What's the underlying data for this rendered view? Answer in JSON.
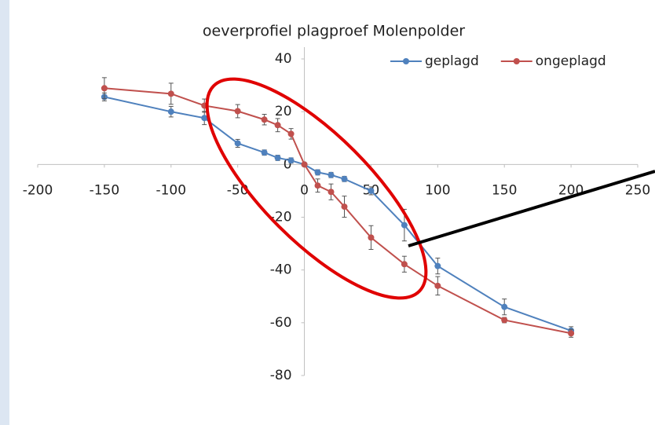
{
  "chart_data": {
    "type": "line",
    "title": "oeverprofiel plagproef Molenpolder",
    "x": [
      -150,
      -100,
      -75,
      -50,
      -30,
      -20,
      -10,
      0,
      10,
      20,
      30,
      50,
      75,
      100,
      150,
      200
    ],
    "series": [
      {
        "name": "geplagd",
        "color": "#4f81bd",
        "values": [
          25.6,
          20,
          17.6,
          8,
          4.5,
          2.5,
          1.5,
          0,
          -3,
          -4,
          -5.5,
          -10,
          -23,
          -38.5,
          -54,
          -63
        ],
        "errors": [
          1.5,
          2,
          2.5,
          1.5,
          1,
          1,
          1,
          0.5,
          1,
          1,
          1,
          1.5,
          6,
          3,
          3,
          1.5
        ]
      },
      {
        "name": "ongeplagd",
        "color": "#c0504d",
        "values": [
          28.9,
          26.8,
          22.3,
          20.2,
          17,
          14.9,
          11.6,
          0,
          -8,
          -10.4,
          -16,
          -27.7,
          -37.8,
          -46,
          -59,
          -64
        ],
        "errors": [
          4,
          4,
          2.5,
          2.5,
          2,
          2.5,
          2,
          0.5,
          2.5,
          3,
          4,
          4.5,
          3,
          3.5,
          1,
          1.5
        ]
      }
    ],
    "xlim": [
      -200,
      250
    ],
    "xticks": [
      -200,
      -150,
      -100,
      -50,
      0,
      50,
      100,
      150,
      200,
      250
    ],
    "ylim": [
      -80,
      40
    ],
    "yticks": [
      -80,
      -60,
      -40,
      -20,
      0,
      20,
      40
    ],
    "grid": false,
    "legend": "top-right"
  }
}
